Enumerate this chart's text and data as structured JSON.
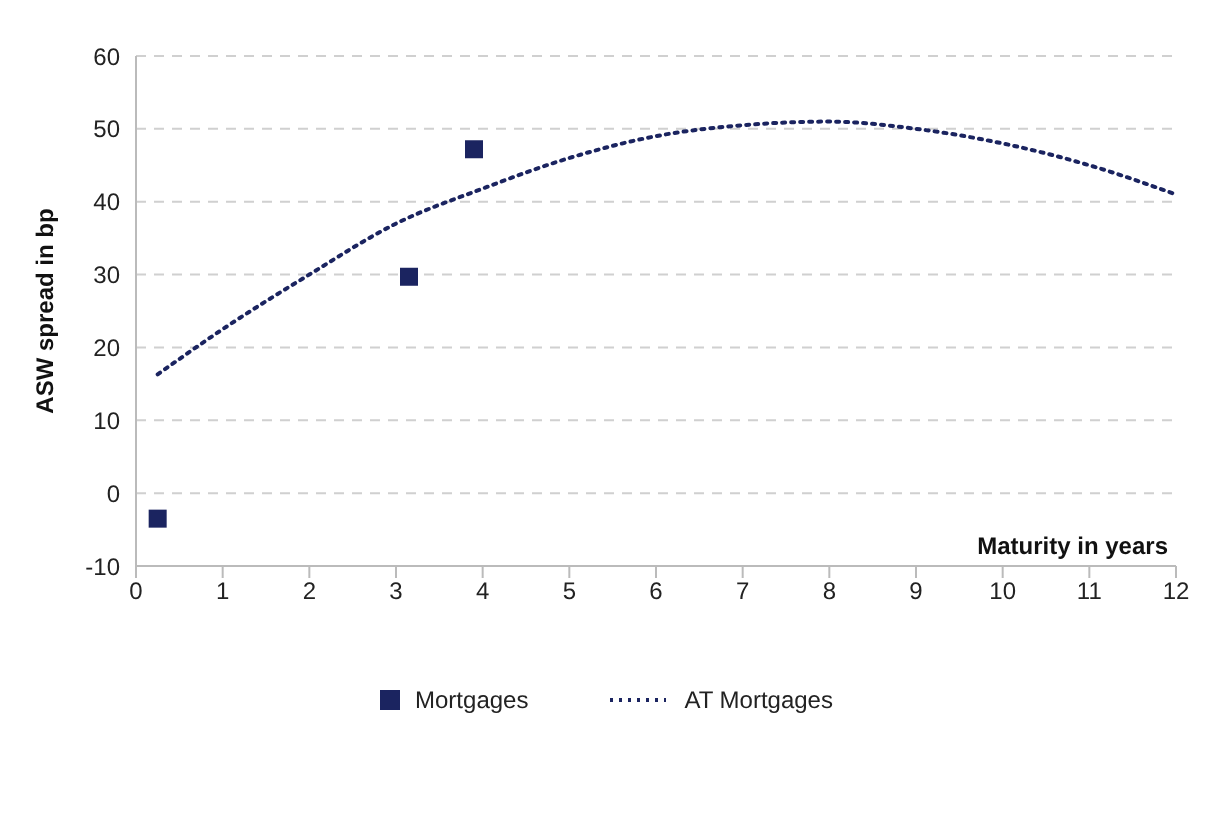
{
  "chart_data": {
    "type": "scatter",
    "xlabel": "Maturity in years",
    "ylabel": "ASW spread in bp",
    "xlim": [
      0,
      12
    ],
    "xticks": [
      0,
      1,
      2,
      3,
      4,
      5,
      6,
      7,
      8,
      9,
      10,
      11,
      12
    ],
    "ylim": [
      -10,
      60
    ],
    "yticks": [
      -10,
      0,
      10,
      20,
      30,
      40,
      50,
      60
    ],
    "grid": "y",
    "legend": "bottom",
    "series": [
      {
        "name": "Mortgages",
        "marker": "square",
        "color": "#1b2460",
        "x": [
          0.25,
          3.15,
          3.9
        ],
        "values": [
          -3.5,
          29.7,
          47.2
        ]
      },
      {
        "name": "AT  Mortgages",
        "type": "line",
        "line_style": "dotted",
        "marker": "none",
        "color": "#1b2460",
        "x": [
          0.25,
          1,
          2,
          3,
          4,
          5,
          6,
          7,
          8,
          9,
          10,
          11,
          12
        ],
        "values": [
          16.3,
          22.5,
          30,
          37,
          41.8,
          46,
          49,
          50.5,
          51,
          50,
          48,
          45,
          41
        ]
      }
    ]
  }
}
